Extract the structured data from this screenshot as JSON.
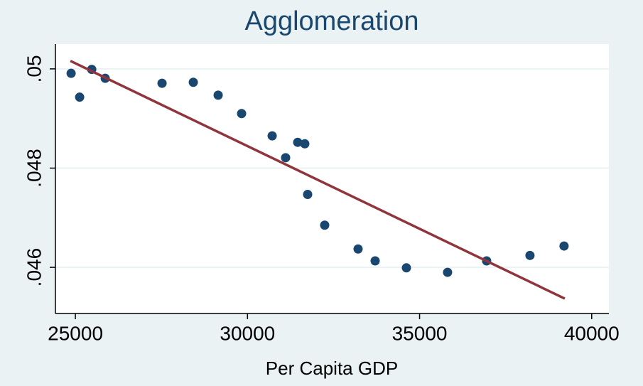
{
  "chart_data": {
    "type": "scatter",
    "title": "Agglomeration",
    "x_label": "Per Capita GDP",
    "x": [
      24876,
      25124,
      25475,
      25867,
      27518,
      28426,
      29148,
      29829,
      30717,
      31108,
      31459,
      31665,
      31748,
      32243,
      33213,
      33709,
      34617,
      35813,
      36948,
      38207,
      39197
    ],
    "values": [
      0.04991,
      0.04943,
      0.04999,
      0.04981,
      0.04971,
      0.04973,
      0.04947,
      0.0491,
      0.04865,
      0.04821,
      0.04852,
      0.04849,
      0.04747,
      0.04685,
      0.04637,
      0.04613,
      0.04599,
      0.0459,
      0.04613,
      0.04624,
      0.04643
    ],
    "color": "#1a476f",
    "fit": {
      "x": [
        24856,
        39218
      ],
      "values": [
        0.05016,
        0.04537
      ],
      "color": "#90353b"
    },
    "xlim": [
      24420,
      40500
    ],
    "ylim": [
      0.04507,
      0.0505
    ],
    "xticks": [
      25000,
      30000,
      35000,
      40000
    ],
    "yticks": [
      {
        "value": 0.046,
        "label": ".046"
      },
      {
        "value": 0.048,
        "label": ".048"
      },
      {
        "value": 0.05,
        "label": ".05"
      }
    ],
    "grid": true
  }
}
